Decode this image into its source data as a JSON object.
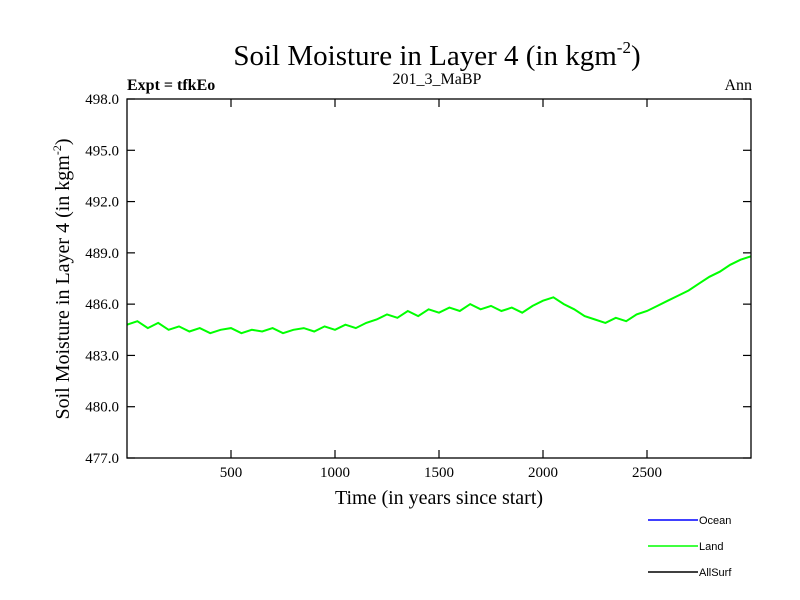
{
  "chart_data": {
    "type": "line",
    "title": "Soil Moisture in Layer 4 (in kgm",
    "title_sup": "-2",
    "title_close": ")",
    "left_label": "Expt = tfkEo",
    "center_label": "201_3_MaBP",
    "right_label": "Ann",
    "xlabel": "Time (in years since start)",
    "ylabel": "Soil Moisture in Layer 4 (in kgm",
    "ylabel_sup": "-2",
    "ylabel_close": ")",
    "xlim": [
      0,
      3000
    ],
    "ylim": [
      477.0,
      498.0
    ],
    "xticks": [
      500,
      1000,
      1500,
      2000,
      2500
    ],
    "xtick_labels": [
      "500",
      "1000",
      "1500",
      "2000",
      "2500"
    ],
    "yticks": [
      477.0,
      480.0,
      483.0,
      486.0,
      489.0,
      492.0,
      495.0,
      498.0
    ],
    "ytick_labels": [
      "477.0",
      "480.0",
      "483.0",
      "486.0",
      "489.0",
      "492.0",
      "495.0",
      "498.0"
    ],
    "grid": false,
    "legend_position": "bottom-right",
    "series": [
      {
        "name": "Land",
        "color": "#00ff00",
        "x": [
          0,
          50,
          100,
          150,
          200,
          250,
          300,
          350,
          400,
          450,
          500,
          550,
          600,
          650,
          700,
          750,
          800,
          850,
          900,
          950,
          1000,
          1050,
          1100,
          1150,
          1200,
          1250,
          1300,
          1350,
          1400,
          1450,
          1500,
          1550,
          1600,
          1650,
          1700,
          1750,
          1800,
          1850,
          1900,
          1950,
          2000,
          2050,
          2100,
          2150,
          2200,
          2250,
          2300,
          2350,
          2400,
          2450,
          2500,
          2550,
          2600,
          2650,
          2700,
          2750,
          2800,
          2850,
          2900,
          2950,
          3000
        ],
        "y": [
          484.8,
          485.0,
          484.6,
          484.9,
          484.5,
          484.7,
          484.4,
          484.6,
          484.3,
          484.5,
          484.6,
          484.3,
          484.5,
          484.4,
          484.6,
          484.3,
          484.5,
          484.6,
          484.4,
          484.7,
          484.5,
          484.8,
          484.6,
          484.9,
          485.1,
          485.4,
          485.2,
          485.6,
          485.3,
          485.7,
          485.5,
          485.8,
          485.6,
          486.0,
          485.7,
          485.9,
          485.6,
          485.8,
          485.5,
          485.9,
          486.2,
          486.4,
          486.0,
          485.7,
          485.3,
          485.1,
          484.9,
          485.2,
          485.0,
          485.4,
          485.6,
          485.9,
          486.2,
          486.5,
          486.8,
          487.2,
          487.6,
          487.9,
          488.3,
          488.6,
          488.8
        ]
      }
    ],
    "legend": [
      {
        "name": "Ocean",
        "color": "#0000ff"
      },
      {
        "name": "Land",
        "color": "#00ff00"
      },
      {
        "name": "AllSurf",
        "color": "#000000"
      }
    ]
  }
}
